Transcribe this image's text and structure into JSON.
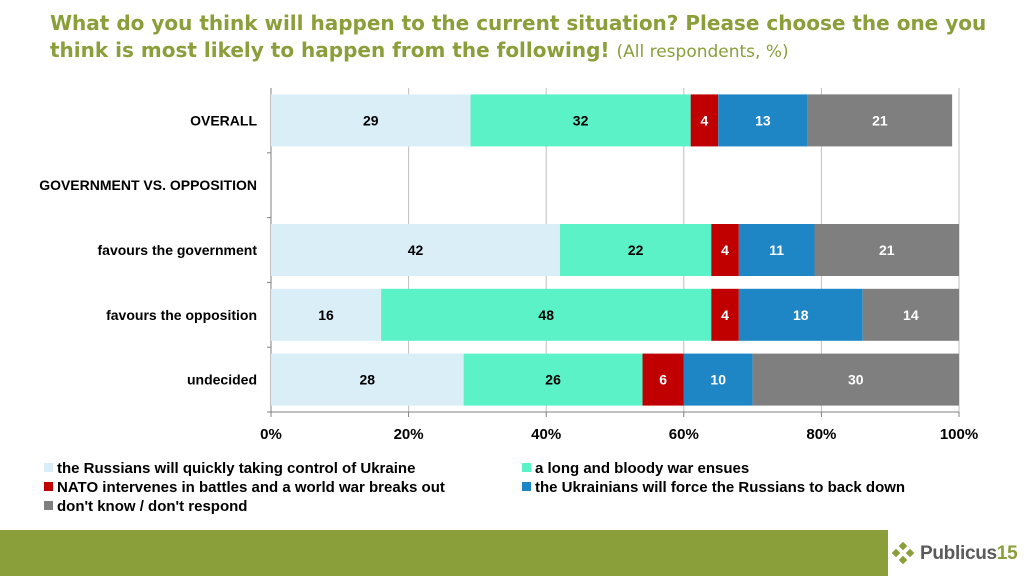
{
  "title": {
    "main": "What do you think will happen to the current situation? Please choose the one you think is most likely to happen from the following!",
    "sub": "(All respondents, %)"
  },
  "chart_data": {
    "type": "bar",
    "orientation": "horizontal",
    "stacked": true,
    "categories": [
      "OVERALL",
      "GOVERNMENT VS. OPPOSITION",
      "favours the government",
      "favours the opposition",
      "undecided"
    ],
    "series": [
      {
        "name": "the Russians will quickly taking control of Ukraine",
        "color": "#daeef8",
        "label_color": "#000000",
        "values": [
          29,
          null,
          42,
          16,
          28
        ]
      },
      {
        "name": "a long and bloody war ensues",
        "color": "#5cf2c8",
        "label_color": "#000000",
        "values": [
          32,
          null,
          22,
          48,
          26
        ]
      },
      {
        "name": "NATO intervenes in battles and a world war breaks out",
        "color": "#c00000",
        "label_color": "#ffffff",
        "values": [
          4,
          null,
          4,
          4,
          6
        ]
      },
      {
        "name": "the Ukrainians will force the Russians to back down",
        "color": "#1f86c6",
        "label_color": "#ffffff",
        "values": [
          13,
          null,
          11,
          18,
          10
        ]
      },
      {
        "name": "don't know / don't respond",
        "color": "#7f7f7f",
        "label_color": "#ffffff",
        "values": [
          21,
          null,
          21,
          14,
          30
        ]
      }
    ],
    "xlim": [
      0,
      100
    ],
    "xticks": [
      "0%",
      "20%",
      "40%",
      "60%",
      "80%",
      "100%"
    ],
    "grid": true,
    "legend_position": "bottom"
  },
  "colors": {
    "title": "#8a9e3a",
    "footer_bar": "#8a9e3a",
    "grid": "#bfbfbf"
  },
  "footer": {
    "logo_text": "Publicus",
    "logo_number": "15"
  }
}
